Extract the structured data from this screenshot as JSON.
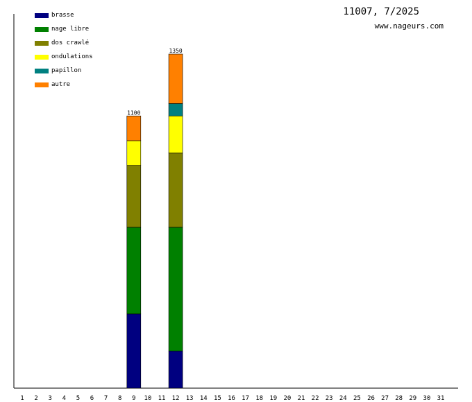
{
  "chart_data": {
    "type": "bar",
    "stacked": true,
    "title": "11007, 7/2025",
    "subtitle": "www.nageurs.com",
    "categories": [
      "1",
      "2",
      "3",
      "4",
      "5",
      "6",
      "7",
      "8",
      "9",
      "10",
      "11",
      "12",
      "13",
      "14",
      "15",
      "16",
      "17",
      "18",
      "19",
      "20",
      "21",
      "22",
      "23",
      "24",
      "25",
      "26",
      "27",
      "28",
      "29",
      "30",
      "31"
    ],
    "ylim": [
      0,
      1500
    ],
    "grid": false,
    "legend_position": "top-left",
    "series": [
      {
        "name": "brasse",
        "color": "#000080",
        "values": [
          0,
          0,
          0,
          0,
          0,
          0,
          0,
          0,
          300,
          0,
          0,
          150,
          0,
          0,
          0,
          0,
          0,
          0,
          0,
          0,
          0,
          0,
          0,
          0,
          0,
          0,
          0,
          0,
          0,
          0,
          0
        ]
      },
      {
        "name": "nage libre",
        "color": "#008000",
        "values": [
          0,
          0,
          0,
          0,
          0,
          0,
          0,
          0,
          350,
          0,
          0,
          500,
          0,
          0,
          0,
          0,
          0,
          0,
          0,
          0,
          0,
          0,
          0,
          0,
          0,
          0,
          0,
          0,
          0,
          0,
          0
        ]
      },
      {
        "name": "dos crawlé",
        "color": "#808000",
        "values": [
          0,
          0,
          0,
          0,
          0,
          0,
          0,
          0,
          250,
          0,
          0,
          300,
          0,
          0,
          0,
          0,
          0,
          0,
          0,
          0,
          0,
          0,
          0,
          0,
          0,
          0,
          0,
          0,
          0,
          0,
          0
        ]
      },
      {
        "name": "ondulations",
        "color": "#ffff00",
        "values": [
          0,
          0,
          0,
          0,
          0,
          0,
          0,
          0,
          100,
          0,
          0,
          150,
          0,
          0,
          0,
          0,
          0,
          0,
          0,
          0,
          0,
          0,
          0,
          0,
          0,
          0,
          0,
          0,
          0,
          0,
          0
        ]
      },
      {
        "name": "papillon",
        "color": "#008080",
        "values": [
          0,
          0,
          0,
          0,
          0,
          0,
          0,
          0,
          0,
          0,
          0,
          50,
          0,
          0,
          0,
          0,
          0,
          0,
          0,
          0,
          0,
          0,
          0,
          0,
          0,
          0,
          0,
          0,
          0,
          0,
          0
        ]
      },
      {
        "name": "autre",
        "color": "#ff8000",
        "values": [
          0,
          0,
          0,
          0,
          0,
          0,
          0,
          0,
          100,
          0,
          0,
          200,
          0,
          0,
          0,
          0,
          0,
          0,
          0,
          0,
          0,
          0,
          0,
          0,
          0,
          0,
          0,
          0,
          0,
          0,
          0
        ]
      }
    ],
    "totals_labels": [
      {
        "category": "9",
        "label": "1100"
      },
      {
        "category": "12",
        "label": "1350"
      }
    ]
  }
}
